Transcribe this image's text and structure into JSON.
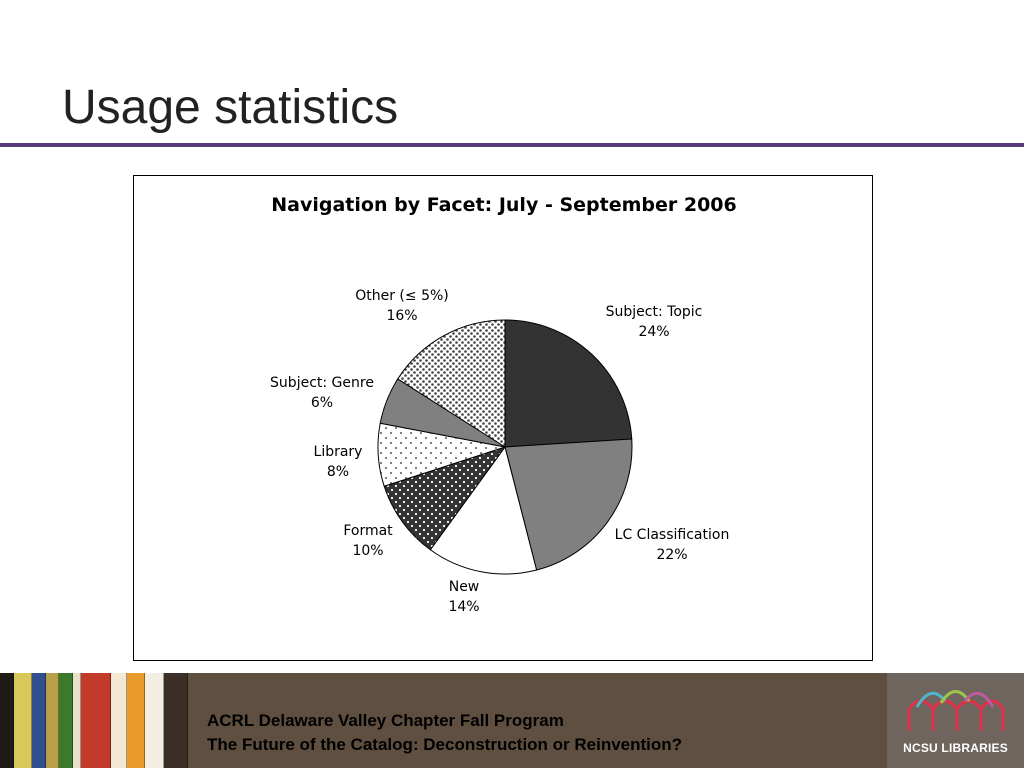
{
  "slide": {
    "title": "Usage statistics",
    "accent_color": "#5b3a7a"
  },
  "chart_data": {
    "type": "pie",
    "title": "Navigation by Facet: July - September 2006",
    "slices": [
      {
        "label": "Subject: Topic",
        "pct_label": "24%",
        "value": 24,
        "fill": "#333333",
        "pattern": "solid"
      },
      {
        "label": "LC Classification",
        "pct_label": "22%",
        "value": 22,
        "fill": "#808080",
        "pattern": "solid"
      },
      {
        "label": "New",
        "pct_label": "14%",
        "value": 14,
        "fill": "#ffffff",
        "pattern": "solid"
      },
      {
        "label": "Format",
        "pct_label": "10%",
        "value": 10,
        "fill": "#333333",
        "pattern": "white-dots"
      },
      {
        "label": "Library",
        "pct_label": "8%",
        "value": 8,
        "fill": "#ffffff",
        "pattern": "sparse-dots"
      },
      {
        "label": "Subject: Genre",
        "pct_label": "6%",
        "value": 6,
        "fill": "#808080",
        "pattern": "solid"
      },
      {
        "label": "Other (≤ 5%)",
        "pct_label": "16%",
        "value": 16,
        "fill": "#ffffff",
        "pattern": "dense-dots"
      }
    ],
    "legend": "none",
    "data_labels": "outside"
  },
  "footer": {
    "line1": "ACRL Delaware Valley Chapter Fall Program",
    "line2": "The Future of the Catalog: Deconstruction or Reinvention?",
    "logo_text": "NCSU LIBRARIES",
    "background_color": "#5f4f41"
  }
}
